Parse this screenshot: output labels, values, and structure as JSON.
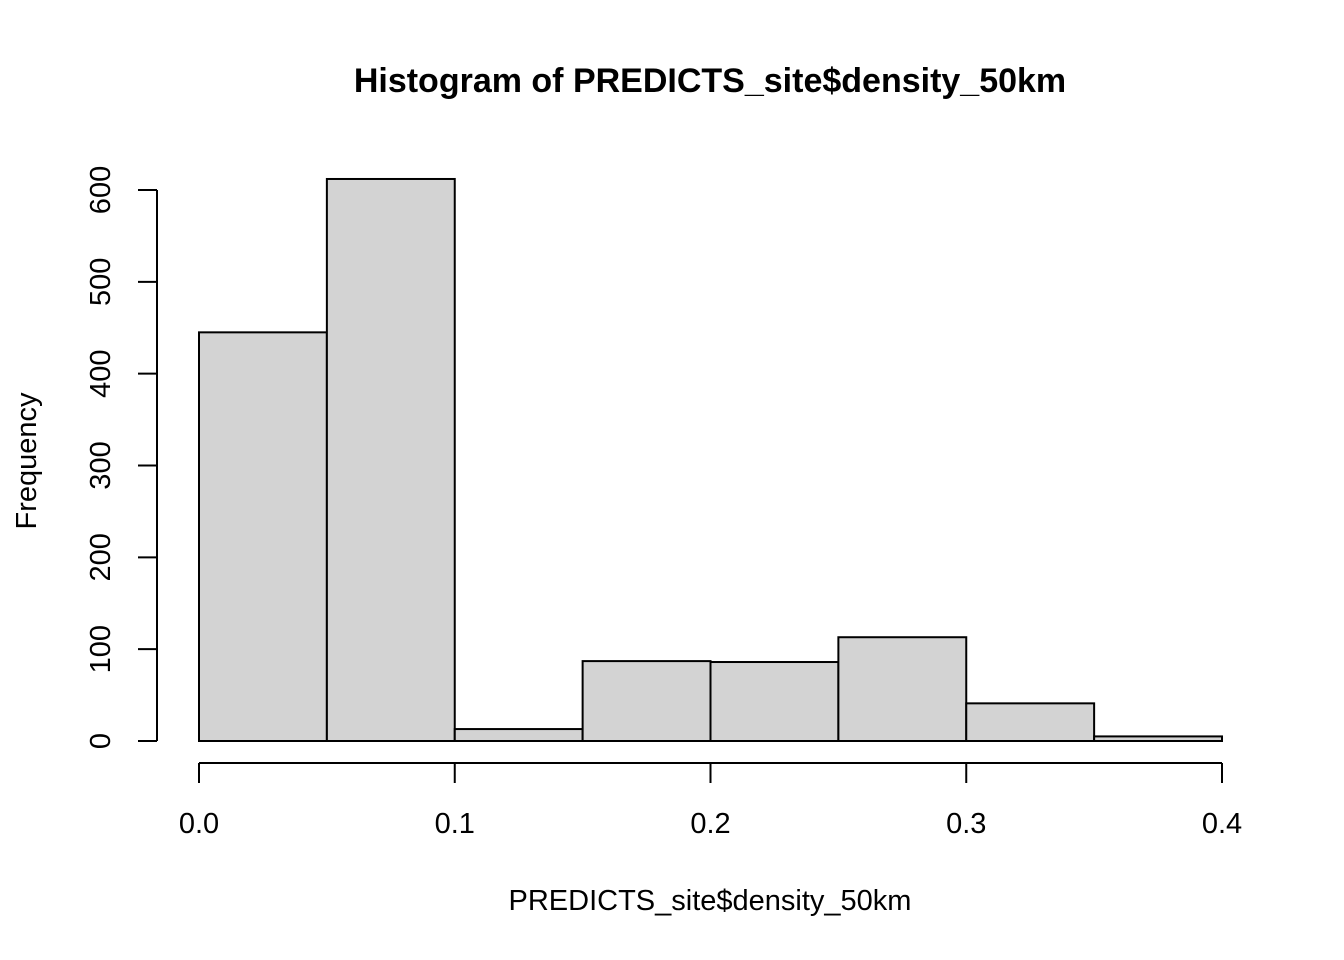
{
  "chart_data": {
    "type": "bar",
    "title": "Histogram of PREDICTS_site$density_50km",
    "xlabel": "PREDICTS_site$density_50km",
    "ylabel": "Frequency",
    "bins": [
      {
        "from": 0.0,
        "to": 0.05,
        "count": 445
      },
      {
        "from": 0.05,
        "to": 0.1,
        "count": 612
      },
      {
        "from": 0.1,
        "to": 0.15,
        "count": 13
      },
      {
        "from": 0.15,
        "to": 0.2,
        "count": 87
      },
      {
        "from": 0.2,
        "to": 0.25,
        "count": 86
      },
      {
        "from": 0.25,
        "to": 0.3,
        "count": 113
      },
      {
        "from": 0.3,
        "to": 0.35,
        "count": 41
      },
      {
        "from": 0.35,
        "to": 0.4,
        "count": 5
      }
    ],
    "xlim": [
      0.0,
      0.4
    ],
    "ylim": [
      0,
      600
    ],
    "xticks": [
      "0.0",
      "0.1",
      "0.2",
      "0.3",
      "0.4"
    ],
    "yticks": [
      "0",
      "100",
      "200",
      "300",
      "400",
      "500",
      "600"
    ],
    "grid": false,
    "colors": {
      "bar_fill": "#d3d3d3",
      "bar_stroke": "#000000"
    }
  }
}
